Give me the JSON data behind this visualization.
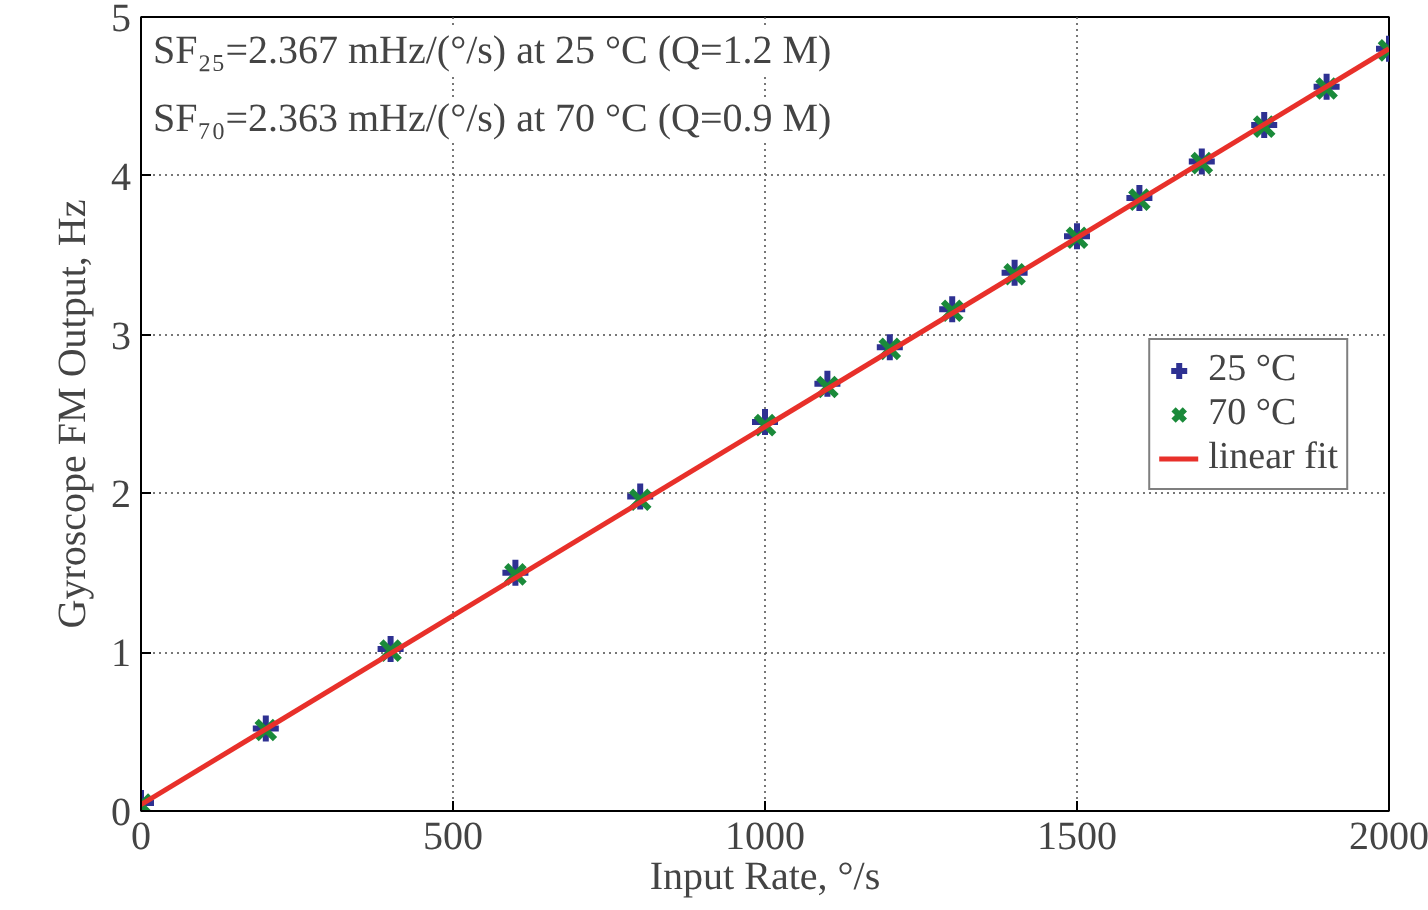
{
  "chart_data": {
    "type": "scatter",
    "xlabel": "Input Rate, °/s",
    "ylabel": "Gyroscope FM Output, Hz",
    "x": [
      0,
      200,
      400,
      600,
      800,
      1000,
      1100,
      1200,
      1300,
      1400,
      1500,
      1600,
      1700,
      1800,
      1900,
      2000
    ],
    "series": [
      {
        "name": "25 °C",
        "color": "#2e3192",
        "marker": "cross",
        "values": [
          0.05,
          0.52,
          1.02,
          1.5,
          1.98,
          2.45,
          2.69,
          2.92,
          3.16,
          3.39,
          3.62,
          3.86,
          4.09,
          4.32,
          4.56,
          4.8
        ]
      },
      {
        "name": "70 °C",
        "color": "#1a8a3a",
        "marker": "x",
        "values": [
          0.04,
          0.51,
          1.01,
          1.49,
          1.96,
          2.43,
          2.67,
          2.91,
          3.15,
          3.38,
          3.61,
          3.85,
          4.08,
          4.31,
          4.55,
          4.79
        ]
      },
      {
        "name": "linear fit",
        "type": "line",
        "color": "#e8302a",
        "marker": "none",
        "x": [
          0,
          2000
        ],
        "values": [
          0.04,
          4.8
        ]
      }
    ],
    "annotations": [
      "SF₂₅=2.367 mHz/(°/s) at 25 °C (Q=1.2 M)",
      "SF₇₀=2.363 mHz/(°/s) at 70 °C (Q=0.9 M)"
    ],
    "xlim": [
      0,
      2000
    ],
    "ylim": [
      0,
      5
    ],
    "xticks": [
      0,
      500,
      1000,
      1500,
      2000
    ],
    "yticks": [
      0,
      1,
      2,
      3,
      4,
      5
    ],
    "grid": true,
    "legend": "right"
  }
}
